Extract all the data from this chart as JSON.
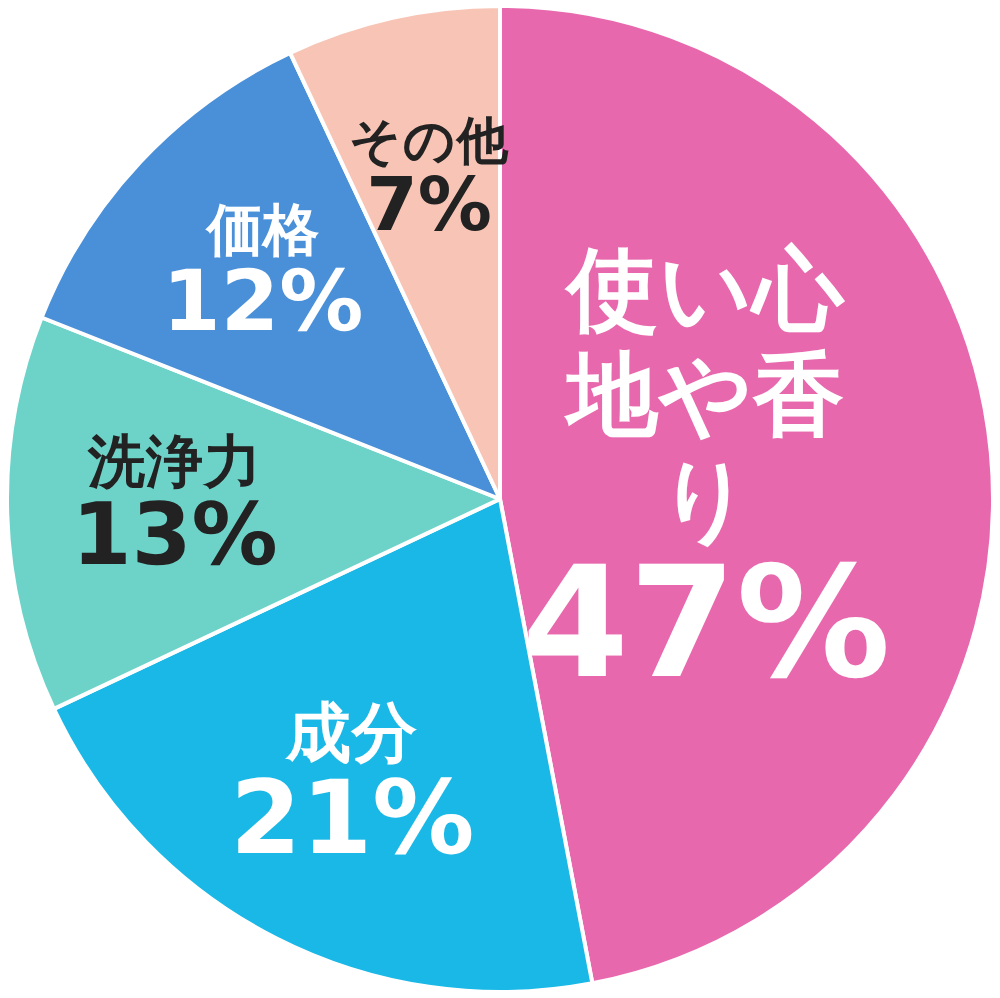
{
  "chart_data": {
    "type": "pie",
    "categories": [
      "使い心地や香り",
      "成分",
      "洗浄力",
      "価格",
      "その他"
    ],
    "values": [
      47,
      21,
      13,
      12,
      7
    ],
    "colors": [
      "#e868ae",
      "#1ab8e6",
      "#6dd3c9",
      "#4a90d9",
      "#f7c4b5"
    ],
    "value_labels": [
      "47%",
      "21%",
      "13%",
      "12%",
      "7%"
    ]
  }
}
